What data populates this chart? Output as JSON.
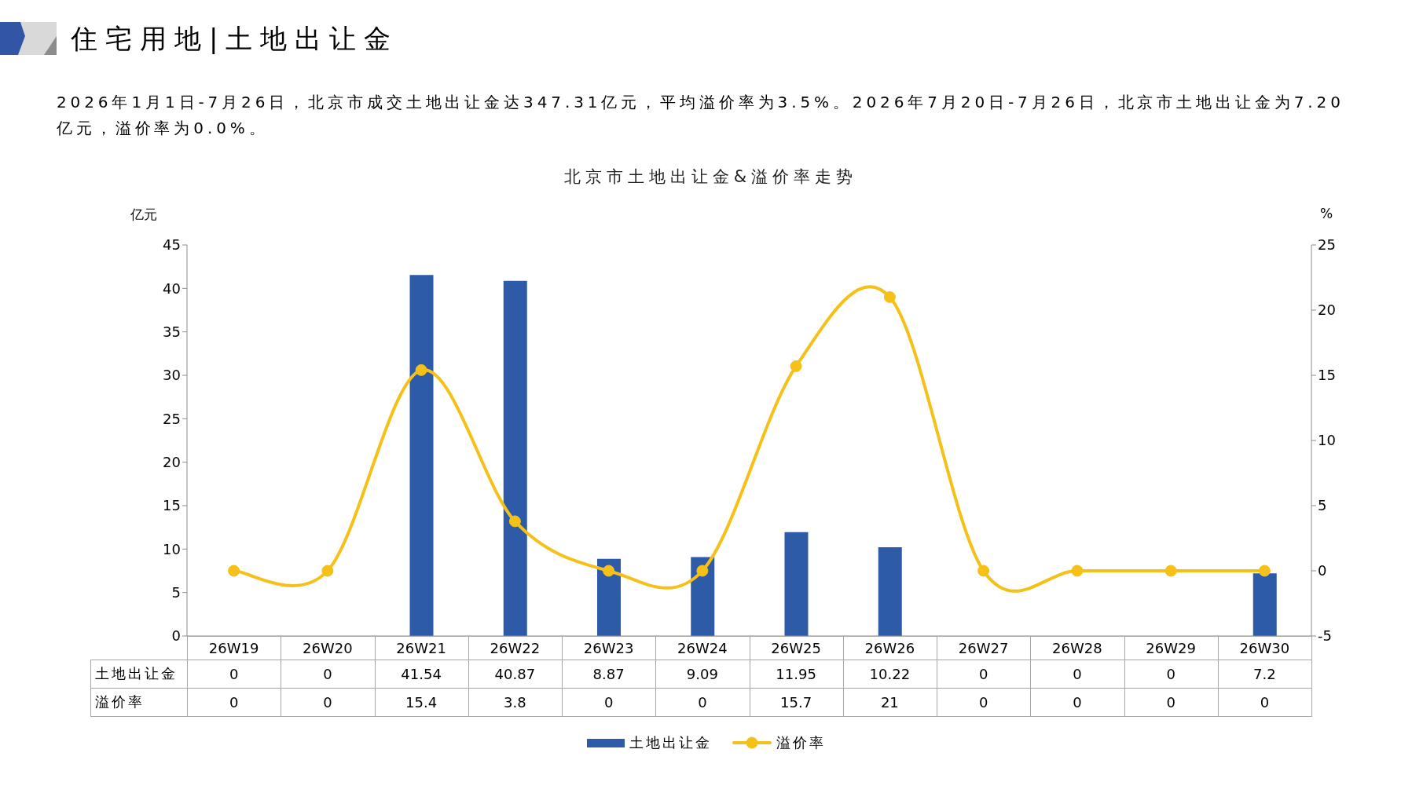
{
  "chart_data": {
    "type": "bar",
    "title": "北京市土地出让金&溢价率走势",
    "subtitle": "2026年1月1日-7月26日，北京市成交土地出让金达347.31亿元，平均溢价率为3.5%。2026年7月20日-7月26日，北京市土地出让金为7.20亿元，溢价率为0.0%。",
    "annotations": [
      "住宅用地|土地出让金"
    ],
    "ylabel": "亿元",
    "y2label": "%",
    "categories": [
      "26W19",
      "26W20",
      "26W21",
      "26W22",
      "26W23",
      "26W24",
      "26W25",
      "26W26",
      "26W27",
      "26W28",
      "26W29",
      "26W30"
    ],
    "series": [
      {
        "name": "土地出让金",
        "color": "#2e5ba8",
        "values": [
          0,
          0,
          41.54,
          40.87,
          8.87,
          9.09,
          11.95,
          10.22,
          0,
          0,
          0,
          7.2
        ]
      },
      {
        "name": "溢价率",
        "type": "line",
        "axis": "y2",
        "color": "#f5c017",
        "values": [
          0,
          0,
          15.4,
          3.8,
          0,
          0,
          15.7,
          21,
          0,
          0,
          0,
          0
        ]
      }
    ],
    "ylim": [
      0,
      45
    ],
    "yticks": [
      0,
      5,
      10,
      15,
      20,
      25,
      30,
      35,
      40,
      45
    ],
    "y2lim": [
      -5,
      25
    ],
    "y2ticks": [
      -5,
      0,
      5,
      10,
      15,
      20,
      25
    ],
    "marker": "circle",
    "legend": "bottom",
    "data_labels": true
  }
}
